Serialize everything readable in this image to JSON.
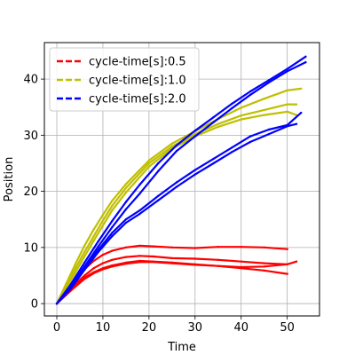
{
  "chart_data": {
    "type": "line",
    "title": "",
    "xlabel": "Time",
    "ylabel": "Position",
    "xlim": [
      -2.7,
      57
    ],
    "ylim": [
      -2.2,
      46.5
    ],
    "xticks": [
      0,
      10,
      20,
      30,
      40,
      50
    ],
    "yticks": [
      0,
      10,
      20,
      30,
      40
    ],
    "grid": true,
    "legend_position": "top-left",
    "series": [
      {
        "name": "cycle-time[s]:0.5",
        "color": "#ff0000",
        "runs": [
          {
            "x": [
              0,
              2,
              4,
              6,
              8,
              10,
              12,
              15,
              18,
              21,
              25,
              30,
              35,
              40,
              45,
              50
            ],
            "y": [
              0,
              2.2,
              4.3,
              6.1,
              7.6,
              8.7,
              9.4,
              10.0,
              10.3,
              10.2,
              10.0,
              9.9,
              10.1,
              10.1,
              10.0,
              9.7
            ]
          },
          {
            "x": [
              0,
              2,
              4,
              6,
              8,
              10,
              12,
              15,
              18,
              21,
              25,
              30,
              35,
              40,
              45,
              50
            ],
            "y": [
              0,
              1.8,
              3.5,
              5.0,
              6.3,
              7.2,
              7.8,
              8.3,
              8.5,
              8.4,
              8.1,
              8.0,
              7.8,
              7.5,
              7.2,
              7.0
            ]
          },
          {
            "x": [
              0,
              2,
              4,
              6,
              8,
              10,
              12,
              15,
              18,
              21,
              25,
              30,
              35,
              40,
              45,
              50
            ],
            "y": [
              0,
              1.6,
              3.2,
              4.6,
              5.6,
              6.3,
              6.8,
              7.3,
              7.6,
              7.5,
              7.3,
              7.0,
              6.7,
              6.3,
              5.9,
              5.3
            ]
          },
          {
            "x": [
              0,
              2,
              4,
              6,
              8,
              10,
              12,
              15,
              18,
              21,
              25,
              30,
              35,
              40,
              45,
              50,
              52
            ],
            "y": [
              0,
              1.5,
              3.0,
              4.4,
              5.4,
              6.1,
              6.6,
              7.1,
              7.4,
              7.4,
              7.2,
              6.9,
              6.7,
              6.5,
              6.6,
              7.0,
              7.5
            ]
          }
        ]
      },
      {
        "name": "cycle-time[s]:1.0",
        "color": "#bfbf00",
        "runs": [
          {
            "x": [
              0,
              2,
              4,
              6,
              8,
              10,
              12,
              15,
              20,
              25,
              30,
              35,
              40,
              45,
              50,
              53
            ],
            "y": [
              0,
              3.5,
              7.0,
              10.3,
              13.2,
              15.8,
              18.3,
              21.3,
              25.5,
              28.5,
              30.7,
              32.9,
              34.9,
              36.5,
              38.0,
              38.3
            ]
          },
          {
            "x": [
              0,
              2,
              4,
              6,
              8,
              10,
              12,
              15,
              20,
              25,
              30,
              35,
              40,
              45,
              50,
              52
            ],
            "y": [
              0,
              3.0,
              6.2,
              9.2,
              12.0,
              14.8,
              17.4,
              20.6,
              25.0,
              28.0,
              30.2,
              32.0,
              33.5,
              34.5,
              35.5,
              35.5
            ]
          },
          {
            "x": [
              0,
              2,
              4,
              6,
              8,
              10,
              12,
              15,
              20,
              25,
              30,
              35,
              40,
              45,
              50,
              52
            ],
            "y": [
              0,
              2.7,
              5.5,
              8.4,
              11.2,
              13.9,
              16.6,
              19.8,
              24.4,
              27.6,
              29.8,
              31.5,
              32.8,
              33.6,
              34.2,
              33.6
            ]
          }
        ]
      },
      {
        "name": "cycle-time[s]:2.0",
        "color": "#0000ff",
        "runs": [
          {
            "x": [
              0,
              3,
              6,
              9,
              12,
              15,
              18,
              22,
              26,
              30,
              34,
              38,
              42,
              46,
              50,
              54
            ],
            "y": [
              0,
              3.4,
              7.3,
              11.1,
              14.7,
              18.1,
              21.2,
              25.0,
              28.2,
              30.8,
              33.2,
              35.6,
              37.8,
              39.8,
              41.8,
              44.0
            ]
          },
          {
            "x": [
              0,
              3,
              6,
              9,
              12,
              15,
              18,
              22,
              26,
              30,
              34,
              38,
              42,
              46,
              50,
              54
            ],
            "y": [
              0,
              3.0,
              6.6,
              10.2,
              13.6,
              16.8,
              19.6,
              23.6,
              27.2,
              29.8,
              32.3,
              34.8,
              37.2,
              39.4,
              41.4,
              43.0
            ]
          },
          {
            "x": [
              0,
              3,
              6,
              9,
              12,
              15,
              18,
              22,
              26,
              30,
              34,
              38,
              42,
              46,
              50,
              53
            ],
            "y": [
              0,
              2.8,
              6.4,
              9.6,
              12.6,
              15.0,
              16.6,
              19.2,
              21.6,
              23.8,
              25.8,
              27.8,
              29.8,
              31.0,
              31.8,
              34.0
            ]
          },
          {
            "x": [
              0,
              3,
              6,
              9,
              12,
              15,
              18,
              22,
              26,
              30,
              34,
              38,
              42,
              46,
              50,
              52
            ],
            "y": [
              0,
              2.6,
              6.0,
              9.2,
              12.0,
              14.4,
              16.0,
              18.4,
              20.8,
              23.0,
              25.0,
              27.0,
              28.8,
              30.2,
              31.6,
              32.0
            ]
          }
        ]
      }
    ]
  }
}
